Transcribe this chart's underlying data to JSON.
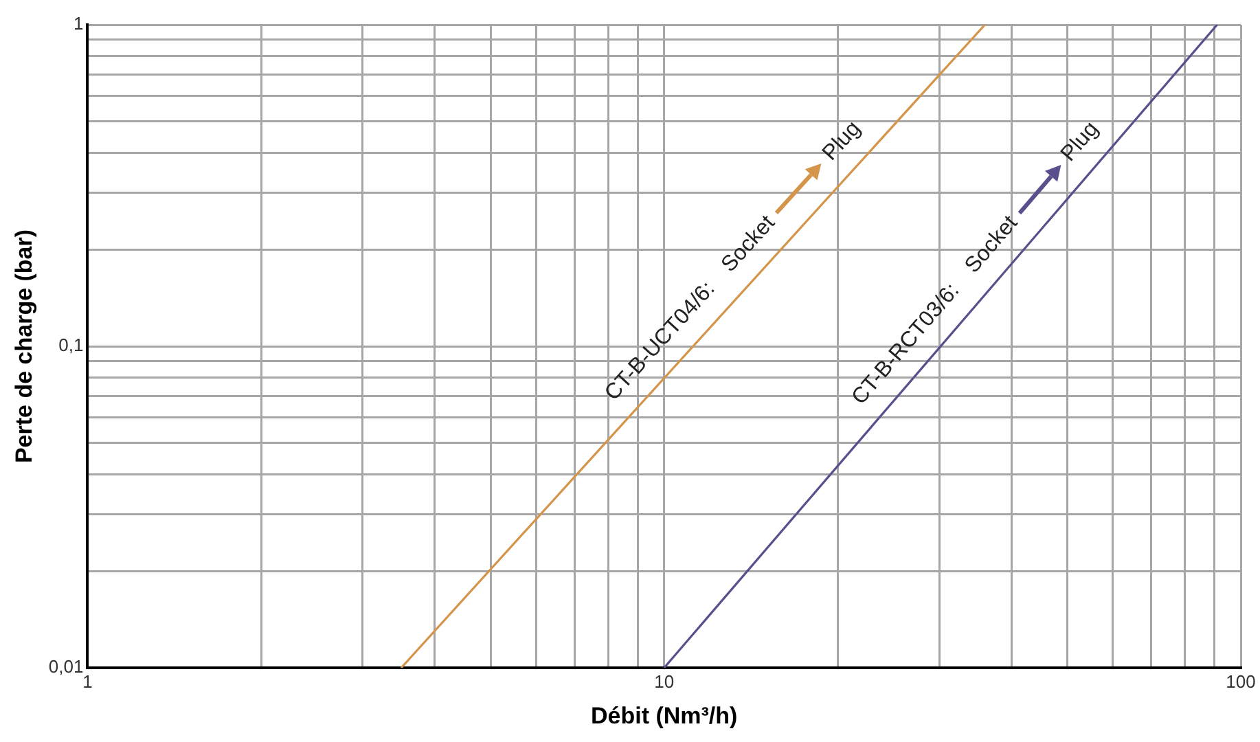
{
  "chart_data": {
    "type": "line",
    "xlabel": "Débit (Nm³/h)",
    "ylabel": "Perte de charge (bar)",
    "log": "xy",
    "grid": true,
    "legend": false,
    "marker": "none",
    "line_style": "solid",
    "xlim": [
      1,
      100
    ],
    "ylim": [
      0.01,
      1
    ],
    "xticks": [
      1,
      {
        "value": 2,
        "label": null
      },
      {
        "value": 3,
        "label": null
      },
      {
        "value": 4,
        "label": null
      },
      {
        "value": 5,
        "label": null
      },
      {
        "value": 6,
        "label": null
      },
      {
        "value": 7,
        "label": null
      },
      {
        "value": 8,
        "label": null
      },
      {
        "value": 9,
        "label": null
      },
      10,
      {
        "value": 20,
        "label": null
      },
      {
        "value": 30,
        "label": null
      },
      {
        "value": 40,
        "label": null
      },
      {
        "value": 50,
        "label": null
      },
      {
        "value": 60,
        "label": null
      },
      {
        "value": 70,
        "label": null
      },
      {
        "value": 80,
        "label": null
      },
      {
        "value": 90,
        "label": null
      },
      100
    ],
    "yticks": [
      {
        "value": 0.01,
        "label": "0,01"
      },
      {
        "value": 0.02,
        "label": null
      },
      {
        "value": 0.03,
        "label": null
      },
      {
        "value": 0.04,
        "label": null
      },
      {
        "value": 0.05,
        "label": null
      },
      {
        "value": 0.06,
        "label": null
      },
      {
        "value": 0.07,
        "label": null
      },
      {
        "value": 0.08,
        "label": null
      },
      {
        "value": 0.09,
        "label": null
      },
      {
        "value": 0.1,
        "label": "0,1"
      },
      {
        "value": 0.2,
        "label": null
      },
      {
        "value": 0.3,
        "label": null
      },
      {
        "value": 0.4,
        "label": null
      },
      {
        "value": 0.5,
        "label": null
      },
      {
        "value": 0.6,
        "label": null
      },
      {
        "value": 0.7,
        "label": null
      },
      {
        "value": 0.8,
        "label": null
      },
      {
        "value": 0.9,
        "label": null
      },
      1
    ],
    "series": [
      {
        "name": "CT-B-UCT04/6:",
        "color": "#d4954a",
        "x": [
          3.5,
          36
        ],
        "values": [
          0.01,
          1
        ]
      },
      {
        "name": "CT-B-RCT03/6:",
        "color": "#5a4e8c",
        "x": [
          10,
          91
        ],
        "values": [
          0.01,
          1
        ]
      }
    ],
    "annotations": [
      "Socket",
      "Plug",
      "Socket",
      "Plug"
    ]
  }
}
